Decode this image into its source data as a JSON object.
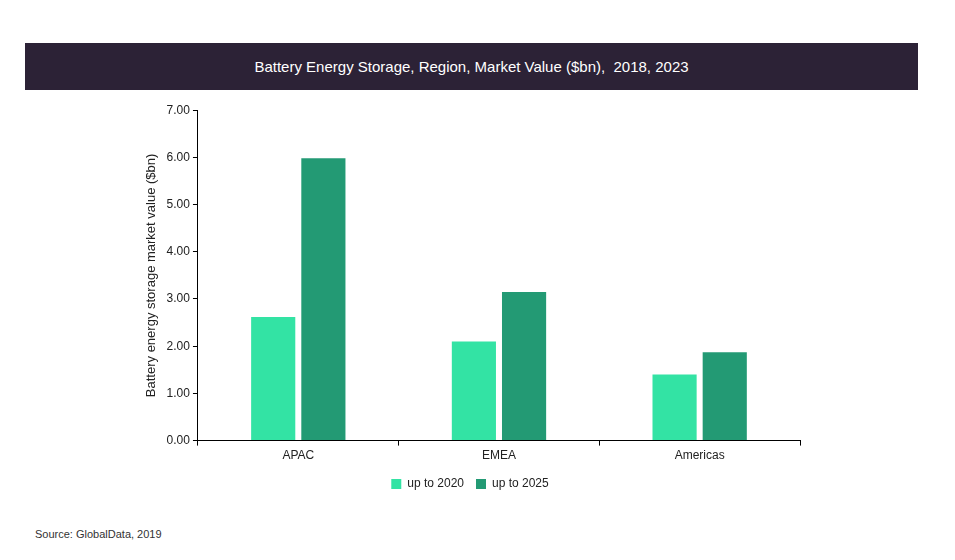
{
  "chart_data": {
    "type": "bar",
    "title": "Battery Energy Storage, Region, Market Value ($bn),  2018, 2023",
    "y_label": "Battery energy storage market value ($bn)",
    "source": "Source: GlobalData, 2019",
    "categories": [
      "APAC",
      "EMEA",
      "Americas"
    ],
    "series": [
      {
        "name": "up to 2020",
        "color": "#33e3a4",
        "values": [
          2.62,
          2.1,
          1.4
        ]
      },
      {
        "name": "up to 2025",
        "color": "#239a74",
        "values": [
          5.98,
          3.15,
          1.87
        ]
      }
    ],
    "ylim": [
      0,
      7
    ],
    "yticks": [
      {
        "value": 0,
        "label": "0.00"
      },
      {
        "value": 1,
        "label": "1.00"
      },
      {
        "value": 2,
        "label": "2.00"
      },
      {
        "value": 3,
        "label": "3.00"
      },
      {
        "value": 4,
        "label": "4.00"
      },
      {
        "value": 5,
        "label": "5.00"
      },
      {
        "value": 6,
        "label": "6.00"
      },
      {
        "value": 7,
        "label": "7.00"
      }
    ],
    "grid": false,
    "legend": "bottom"
  }
}
